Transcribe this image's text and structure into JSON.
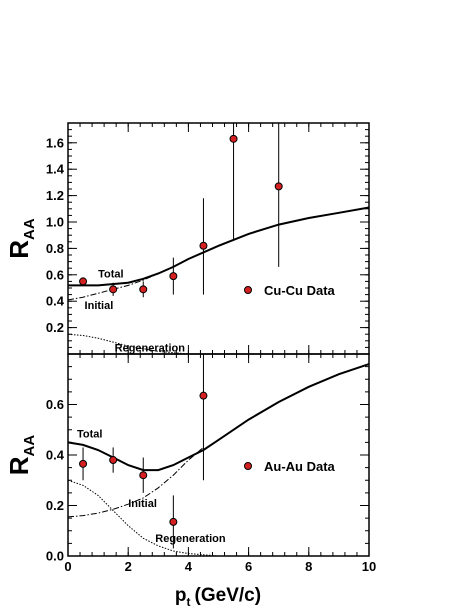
{
  "chart_data": [
    {
      "type": "line",
      "panel": "top",
      "ylabel": "R",
      "ylabel_sub": "AA",
      "xlim": [
        0,
        10
      ],
      "ylim": [
        0,
        1.75
      ],
      "x_ticks": [
        0,
        2,
        4,
        6,
        8,
        10
      ],
      "y_ticks": [
        0.2,
        0.4,
        0.6,
        0.8,
        1.0,
        1.2,
        1.4,
        1.6
      ],
      "y_tick_labels": [
        "0.2",
        "0.4",
        "0.6",
        "0.8",
        "1.0",
        "1.2",
        "1.4",
        "1.6"
      ],
      "legend": {
        "label": "Cu-Cu Data",
        "placement": "lower-right"
      },
      "annotations": [
        {
          "text": "Total",
          "x": 1.0,
          "y": 0.58
        },
        {
          "text": "Initial",
          "x": 0.55,
          "y": 0.34
        },
        {
          "text": "Regeneration",
          "x": 1.55,
          "y": 0.02
        }
      ],
      "series": [
        {
          "style": "solid",
          "points": [
            [
              0,
              0.52
            ],
            [
              1,
              0.52
            ],
            [
              2,
              0.54
            ],
            [
              2.5,
              0.57
            ],
            [
              3,
              0.61
            ],
            [
              3.5,
              0.66
            ],
            [
              4,
              0.72
            ],
            [
              5,
              0.82
            ],
            [
              6,
              0.91
            ],
            [
              7,
              0.98
            ],
            [
              8,
              1.03
            ],
            [
              9,
              1.07
            ],
            [
              10,
              1.11
            ]
          ]
        },
        {
          "style": "dashdot",
          "points": [
            [
              0,
              0.41
            ],
            [
              0.5,
              0.43
            ],
            [
              1,
              0.46
            ],
            [
              1.5,
              0.49
            ],
            [
              2,
              0.52
            ],
            [
              2.5,
              0.56
            ],
            [
              3,
              0.61
            ]
          ]
        },
        {
          "style": "dotted",
          "points": [
            [
              0,
              0.15
            ],
            [
              0.5,
              0.14
            ],
            [
              1,
              0.12
            ],
            [
              1.5,
              0.09
            ],
            [
              2,
              0.06
            ],
            [
              2.5,
              0.04
            ],
            [
              3,
              0.02
            ],
            [
              3.5,
              0.01
            ],
            [
              4,
              0.0
            ]
          ]
        }
      ],
      "data_points": [
        {
          "x": 0.5,
          "y": 0.55,
          "err_low": 0.52,
          "err_high": 0.58
        },
        {
          "x": 1.5,
          "y": 0.49,
          "err_low": 0.44,
          "err_high": 0.54
        },
        {
          "x": 2.5,
          "y": 0.49,
          "err_low": 0.43,
          "err_high": 0.55
        },
        {
          "x": 3.5,
          "y": 0.59,
          "err_low": 0.45,
          "err_high": 0.73
        },
        {
          "x": 4.5,
          "y": 0.82,
          "err_low": 0.45,
          "err_high": 1.18
        },
        {
          "x": 5.5,
          "y": 1.63,
          "err_low": 0.87,
          "err_high": 1.75
        },
        {
          "x": 7.0,
          "y": 1.27,
          "err_low": 0.66,
          "err_high": 1.75
        }
      ]
    },
    {
      "type": "line",
      "panel": "bottom",
      "ylabel": "R",
      "ylabel_sub": "AA",
      "xlabel": "p",
      "xlabel_sub": "t",
      "xlabel_unit": "(GeV/c)",
      "xlim": [
        0,
        10
      ],
      "ylim": [
        0,
        0.8
      ],
      "x_ticks": [
        0,
        2,
        4,
        6,
        8,
        10
      ],
      "x_tick_labels": [
        "0",
        "2",
        "4",
        "6",
        "8",
        "10"
      ],
      "y_ticks": [
        0.0,
        0.2,
        0.4,
        0.6
      ],
      "y_tick_labels": [
        "0.0",
        "0.2",
        "0.4",
        "0.6"
      ],
      "legend": {
        "label": "Au-Au Data",
        "placement": "right"
      },
      "annotations": [
        {
          "text": "Total",
          "x": 0.3,
          "y": 0.47
        },
        {
          "text": "Initial",
          "x": 2.0,
          "y": 0.195
        },
        {
          "text": "Regeneration",
          "x": 2.9,
          "y": 0.055
        }
      ],
      "series": [
        {
          "style": "solid",
          "points": [
            [
              0,
              0.45
            ],
            [
              0.5,
              0.44
            ],
            [
              1,
              0.42
            ],
            [
              1.5,
              0.39
            ],
            [
              2,
              0.36
            ],
            [
              2.5,
              0.34
            ],
            [
              3,
              0.34
            ],
            [
              3.5,
              0.36
            ],
            [
              4,
              0.39
            ],
            [
              4.5,
              0.42
            ],
            [
              5,
              0.46
            ],
            [
              6,
              0.54
            ],
            [
              7,
              0.61
            ],
            [
              8,
              0.67
            ],
            [
              9,
              0.72
            ],
            [
              10,
              0.76
            ]
          ]
        },
        {
          "style": "dashdot",
          "points": [
            [
              0,
              0.155
            ],
            [
              0.5,
              0.16
            ],
            [
              1,
              0.17
            ],
            [
              1.5,
              0.185
            ],
            [
              2,
              0.205
            ],
            [
              2.5,
              0.23
            ],
            [
              3,
              0.27
            ],
            [
              3.5,
              0.32
            ],
            [
              4,
              0.38
            ],
            [
              4.5,
              0.43
            ]
          ]
        },
        {
          "style": "dotted",
          "points": [
            [
              0,
              0.3
            ],
            [
              0.5,
              0.28
            ],
            [
              1,
              0.24
            ],
            [
              1.5,
              0.18
            ],
            [
              2,
              0.12
            ],
            [
              2.5,
              0.07
            ],
            [
              3,
              0.04
            ],
            [
              3.5,
              0.02
            ],
            [
              4,
              0.01
            ],
            [
              5,
              0.0
            ]
          ]
        }
      ],
      "data_points": [
        {
          "x": 0.5,
          "y": 0.365,
          "err_low": 0.3,
          "err_high": 0.43
        },
        {
          "x": 1.5,
          "y": 0.38,
          "err_low": 0.33,
          "err_high": 0.43
        },
        {
          "x": 2.5,
          "y": 0.32,
          "err_low": 0.25,
          "err_high": 0.39
        },
        {
          "x": 3.5,
          "y": 0.135,
          "err_low": 0.03,
          "err_high": 0.24
        },
        {
          "x": 4.5,
          "y": 0.635,
          "err_low": 0.3,
          "err_high": 0.8
        }
      ]
    }
  ],
  "colors": {
    "marker_fill": "#d42020",
    "marker_stroke": "#000000",
    "axis": "#000000"
  }
}
